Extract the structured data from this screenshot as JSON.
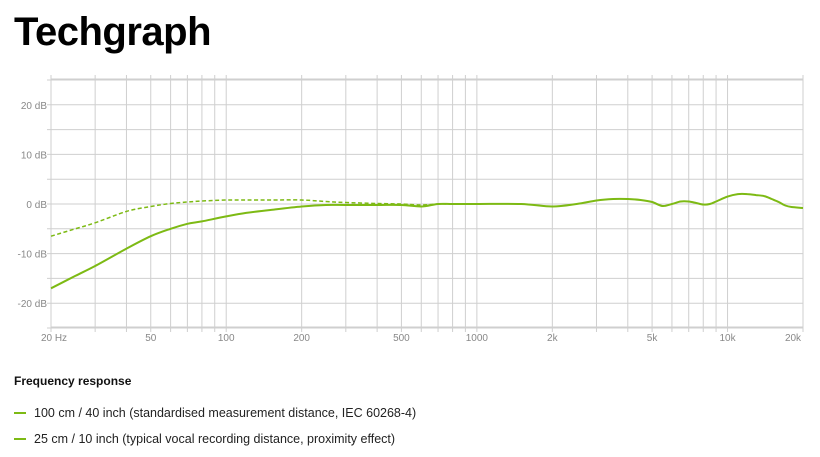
{
  "header": {
    "brand": "Techgraph"
  },
  "colors": {
    "series": "#7dba14",
    "grid": "#cfcfcf",
    "tick_text": "#888888"
  },
  "legend": {
    "heading": "Frequency response",
    "items": [
      {
        "label": "100 cm / 40 inch (standardised measurement distance, IEC 60268-4)",
        "style": "solid"
      },
      {
        "label": "25 cm / 10 inch (typical vocal recording distance, proximity effect)",
        "style": "dashed"
      }
    ]
  },
  "chart_data": {
    "type": "line",
    "title": "",
    "xlabel": "",
    "ylabel": "",
    "x_scale": "log",
    "xlim": [
      20,
      20000
    ],
    "ylim": [
      -25,
      25
    ],
    "grid": true,
    "legend_position": "bottom-left",
    "x_ticks": [
      {
        "value": 20,
        "label": "20 Hz"
      },
      {
        "value": 50,
        "label": "50"
      },
      {
        "value": 100,
        "label": "100"
      },
      {
        "value": 200,
        "label": "200"
      },
      {
        "value": 500,
        "label": "500"
      },
      {
        "value": 1000,
        "label": "1000"
      },
      {
        "value": 2000,
        "label": "2k"
      },
      {
        "value": 5000,
        "label": "5k"
      },
      {
        "value": 10000,
        "label": "10k"
      },
      {
        "value": 20000,
        "label": "20k"
      }
    ],
    "y_ticks": [
      {
        "value": 20,
        "label": "20 dB"
      },
      {
        "value": 10,
        "label": "10 dB"
      },
      {
        "value": 0,
        "label": "0 dB"
      },
      {
        "value": -10,
        "label": "-10 dB"
      },
      {
        "value": -20,
        "label": "-20 dB"
      }
    ],
    "series": [
      {
        "name": "100 cm / 40 inch (standardised measurement distance, IEC 60268-4)",
        "style": "solid",
        "x": [
          20,
          25,
          30,
          40,
          50,
          60,
          70,
          80,
          100,
          120,
          150,
          200,
          250,
          300,
          400,
          500,
          600,
          700,
          800,
          1000,
          1500,
          2000,
          2500,
          3000,
          3500,
          4000,
          4500,
          5000,
          5500,
          6000,
          6500,
          7000,
          7500,
          8000,
          8500,
          9000,
          10000,
          11000,
          12000,
          13000,
          14000,
          15000,
          16000,
          17000,
          18000,
          20000
        ],
        "y": [
          -17,
          -14.5,
          -12.5,
          -9,
          -6.5,
          -5,
          -4,
          -3.5,
          -2.5,
          -1.8,
          -1.2,
          -0.5,
          -0.2,
          -0.2,
          -0.2,
          -0.2,
          -0.5,
          0,
          0,
          0,
          0,
          -0.5,
          0,
          0.7,
          1,
          1,
          0.8,
          0.4,
          -0.4,
          0,
          0.5,
          0.5,
          0.2,
          -0.1,
          0,
          0.5,
          1.5,
          2,
          2,
          1.8,
          1.6,
          1,
          0.4,
          -0.3,
          -0.6,
          -0.8
        ]
      },
      {
        "name": "25 cm / 10 inch (typical vocal recording distance, proximity effect)",
        "style": "dashed",
        "x": [
          20,
          25,
          30,
          40,
          50,
          60,
          70,
          80,
          100,
          120,
          150,
          200,
          250,
          300,
          400,
          500,
          600,
          700,
          800,
          1000
        ],
        "y": [
          -6.5,
          -5,
          -3.8,
          -1.5,
          -0.5,
          0.1,
          0.4,
          0.6,
          0.8,
          0.8,
          0.8,
          0.8,
          0.5,
          0.3,
          0.1,
          0,
          -0.2,
          0,
          0,
          0
        ]
      }
    ]
  }
}
